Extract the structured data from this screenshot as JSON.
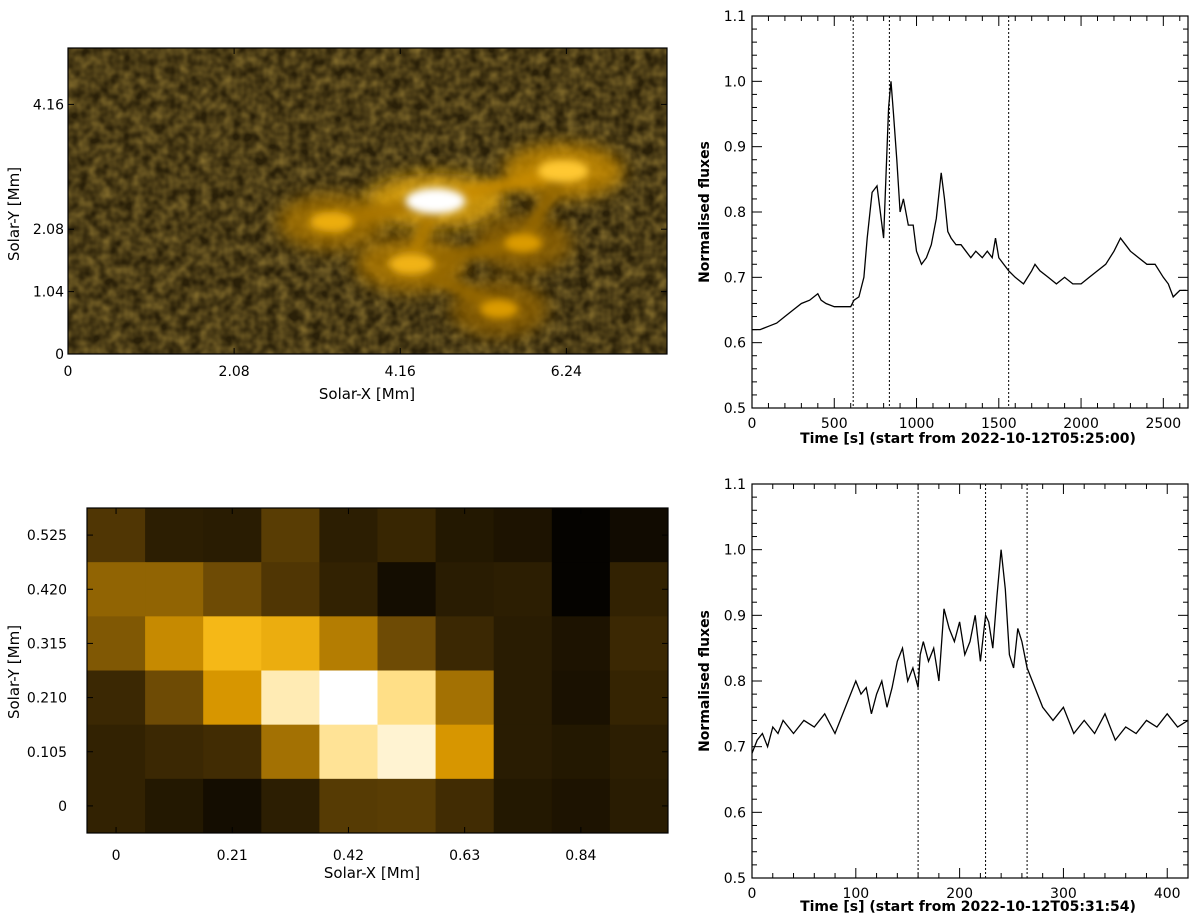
{
  "panels": {
    "image_top": {
      "xlabel": "Solar-X [Mm]",
      "ylabel": "Solar-Y [Mm]",
      "xticks": [
        "0",
        "2.08",
        "4.16",
        "6.24"
      ],
      "yticks": [
        "0",
        "1.04",
        "2.08",
        "4.16"
      ]
    },
    "image_bottom": {
      "xlabel": "Solar-X [Mm]",
      "ylabel": "Solar-Y [Mm]",
      "xticks": [
        "0",
        "0.21",
        "0.42",
        "0.63",
        "0.84"
      ],
      "yticks": [
        "0",
        "0.105",
        "0.210",
        "0.315",
        "0.420",
        "0.525"
      ]
    },
    "curve_top": {
      "xlabel": "Time [s] (start from 2022-10-12T05:25:00)",
      "ylabel": "Normalised fluxes",
      "xticks": [
        "0",
        "500",
        "1000",
        "1500",
        "2000",
        "2500"
      ],
      "yticks": [
        "0.5",
        "0.6",
        "0.7",
        "0.8",
        "0.9",
        "1.0",
        "1.1"
      ]
    },
    "curve_bottom": {
      "xlabel": "Time [s] (start from 2022-10-12T05:31:54)",
      "ylabel": "Normalised fluxes",
      "xticks": [
        "0",
        "100",
        "200",
        "300",
        "400"
      ],
      "yticks": [
        "0.5",
        "0.6",
        "0.7",
        "0.8",
        "0.9",
        "1.0",
        "1.1"
      ]
    }
  },
  "chart_data": [
    {
      "type": "heatmap",
      "colormap": "black-orange-yellow-white",
      "accent_color": "#f0a000",
      "xlabel": "Solar-X [Mm]",
      "ylabel": "Solar-Y [Mm]",
      "xlim": [
        0,
        7.5
      ],
      "ylim": [
        0,
        5.1
      ],
      "tick_values_x": [
        0,
        2.08,
        4.16,
        6.24
      ],
      "tick_values_y": [
        0,
        1.04,
        2.08,
        4.16
      ],
      "features": [
        {
          "name": "bright core",
          "x": 4.6,
          "y": 2.55,
          "intensity": 1.0
        },
        {
          "name": "upper-right arm",
          "x": 6.2,
          "y": 3.05,
          "intensity": 0.75
        },
        {
          "name": "left wing",
          "x": 3.3,
          "y": 2.2,
          "intensity": 0.55
        },
        {
          "name": "lower arm",
          "x": 4.3,
          "y": 1.5,
          "intensity": 0.6
        },
        {
          "name": "lower-right tail",
          "x": 5.4,
          "y": 0.75,
          "intensity": 0.4
        },
        {
          "name": "right loop",
          "x": 5.7,
          "y": 1.85,
          "intensity": 0.4
        }
      ]
    },
    {
      "type": "heatmap",
      "colormap": "black-orange-yellow-white",
      "xlabel": "Solar-X [Mm]",
      "ylabel": "Solar-Y [Mm]",
      "tick_values_x": [
        0,
        0.21,
        0.42,
        0.63,
        0.84
      ],
      "tick_values_y": [
        0,
        0.105,
        0.21,
        0.315,
        0.42,
        0.525
      ],
      "pixel_size": 0.105,
      "rows_top_to_bottom": [
        [
          0.25,
          0.13,
          0.12,
          0.28,
          0.13,
          0.17,
          0.1,
          0.08,
          0.0,
          0.04
        ],
        [
          0.45,
          0.45,
          0.35,
          0.25,
          0.15,
          0.05,
          0.12,
          0.13,
          0.0,
          0.15
        ],
        [
          0.4,
          0.6,
          0.8,
          0.75,
          0.55,
          0.35,
          0.18,
          0.12,
          0.08,
          0.18
        ],
        [
          0.18,
          0.35,
          0.65,
          0.95,
          1.0,
          0.92,
          0.5,
          0.12,
          0.07,
          0.16
        ],
        [
          0.15,
          0.18,
          0.2,
          0.5,
          0.93,
          0.97,
          0.65,
          0.12,
          0.1,
          0.13
        ],
        [
          0.15,
          0.1,
          0.05,
          0.13,
          0.27,
          0.28,
          0.2,
          0.1,
          0.08,
          0.12
        ]
      ]
    },
    {
      "type": "line",
      "xlabel": "Time [s] (start from 2022-10-12T05:25:00)",
      "ylabel": "Normalised fluxes",
      "xlim": [
        0,
        2650
      ],
      "ylim": [
        0.5,
        1.1
      ],
      "vlines": [
        615,
        835,
        1560
      ],
      "series": [
        {
          "x": [
            0,
            50,
            100,
            150,
            200,
            250,
            300,
            350,
            400,
            420,
            450,
            500,
            550,
            600,
            620,
            650,
            680,
            700,
            730,
            760,
            780,
            800,
            815,
            830,
            845,
            860,
            880,
            900,
            920,
            950,
            980,
            1000,
            1030,
            1060,
            1090,
            1120,
            1150,
            1170,
            1190,
            1210,
            1240,
            1270,
            1300,
            1330,
            1360,
            1400,
            1430,
            1460,
            1480,
            1500,
            1530,
            1560,
            1600,
            1650,
            1700,
            1720,
            1750,
            1800,
            1850,
            1900,
            1950,
            2000,
            2050,
            2100,
            2150,
            2200,
            2240,
            2270,
            2300,
            2350,
            2400,
            2450,
            2500,
            2530,
            2560,
            2600,
            2640
          ],
          "y": [
            0.62,
            0.62,
            0.625,
            0.63,
            0.64,
            0.65,
            0.66,
            0.665,
            0.675,
            0.665,
            0.66,
            0.655,
            0.655,
            0.655,
            0.665,
            0.67,
            0.7,
            0.76,
            0.83,
            0.84,
            0.8,
            0.76,
            0.86,
            0.96,
            1.0,
            0.95,
            0.88,
            0.8,
            0.82,
            0.78,
            0.78,
            0.74,
            0.72,
            0.73,
            0.75,
            0.79,
            0.86,
            0.82,
            0.77,
            0.76,
            0.75,
            0.75,
            0.74,
            0.73,
            0.74,
            0.73,
            0.74,
            0.73,
            0.76,
            0.73,
            0.72,
            0.71,
            0.7,
            0.69,
            0.71,
            0.72,
            0.71,
            0.7,
            0.69,
            0.7,
            0.69,
            0.69,
            0.7,
            0.71,
            0.72,
            0.74,
            0.76,
            0.75,
            0.74,
            0.73,
            0.72,
            0.72,
            0.7,
            0.69,
            0.67,
            0.68,
            0.68
          ]
        }
      ]
    },
    {
      "type": "line",
      "xlabel": "Time [s] (start from 2022-10-12T05:31:54)",
      "ylabel": "Normalised fluxes",
      "xlim": [
        0,
        420
      ],
      "ylim": [
        0.5,
        1.1
      ],
      "vlines": [
        160,
        225,
        265
      ],
      "series": [
        {
          "x": [
            0,
            5,
            10,
            15,
            20,
            25,
            30,
            40,
            50,
            60,
            70,
            80,
            90,
            100,
            105,
            110,
            115,
            120,
            125,
            130,
            135,
            140,
            145,
            150,
            155,
            160,
            162,
            165,
            170,
            175,
            180,
            185,
            190,
            195,
            200,
            205,
            210,
            215,
            220,
            225,
            228,
            232,
            236,
            240,
            244,
            248,
            252,
            256,
            260,
            265,
            270,
            280,
            290,
            300,
            310,
            320,
            330,
            340,
            350,
            360,
            370,
            380,
            390,
            400,
            410,
            420
          ],
          "y": [
            0.69,
            0.71,
            0.72,
            0.7,
            0.73,
            0.72,
            0.74,
            0.72,
            0.74,
            0.73,
            0.75,
            0.72,
            0.76,
            0.8,
            0.78,
            0.79,
            0.75,
            0.78,
            0.8,
            0.76,
            0.79,
            0.83,
            0.85,
            0.8,
            0.82,
            0.79,
            0.84,
            0.86,
            0.83,
            0.85,
            0.8,
            0.91,
            0.88,
            0.86,
            0.89,
            0.84,
            0.86,
            0.9,
            0.83,
            0.9,
            0.89,
            0.85,
            0.93,
            1.0,
            0.94,
            0.84,
            0.82,
            0.88,
            0.86,
            0.82,
            0.8,
            0.76,
            0.74,
            0.76,
            0.72,
            0.74,
            0.72,
            0.75,
            0.71,
            0.73,
            0.72,
            0.74,
            0.73,
            0.75,
            0.73,
            0.74
          ]
        }
      ]
    }
  ]
}
